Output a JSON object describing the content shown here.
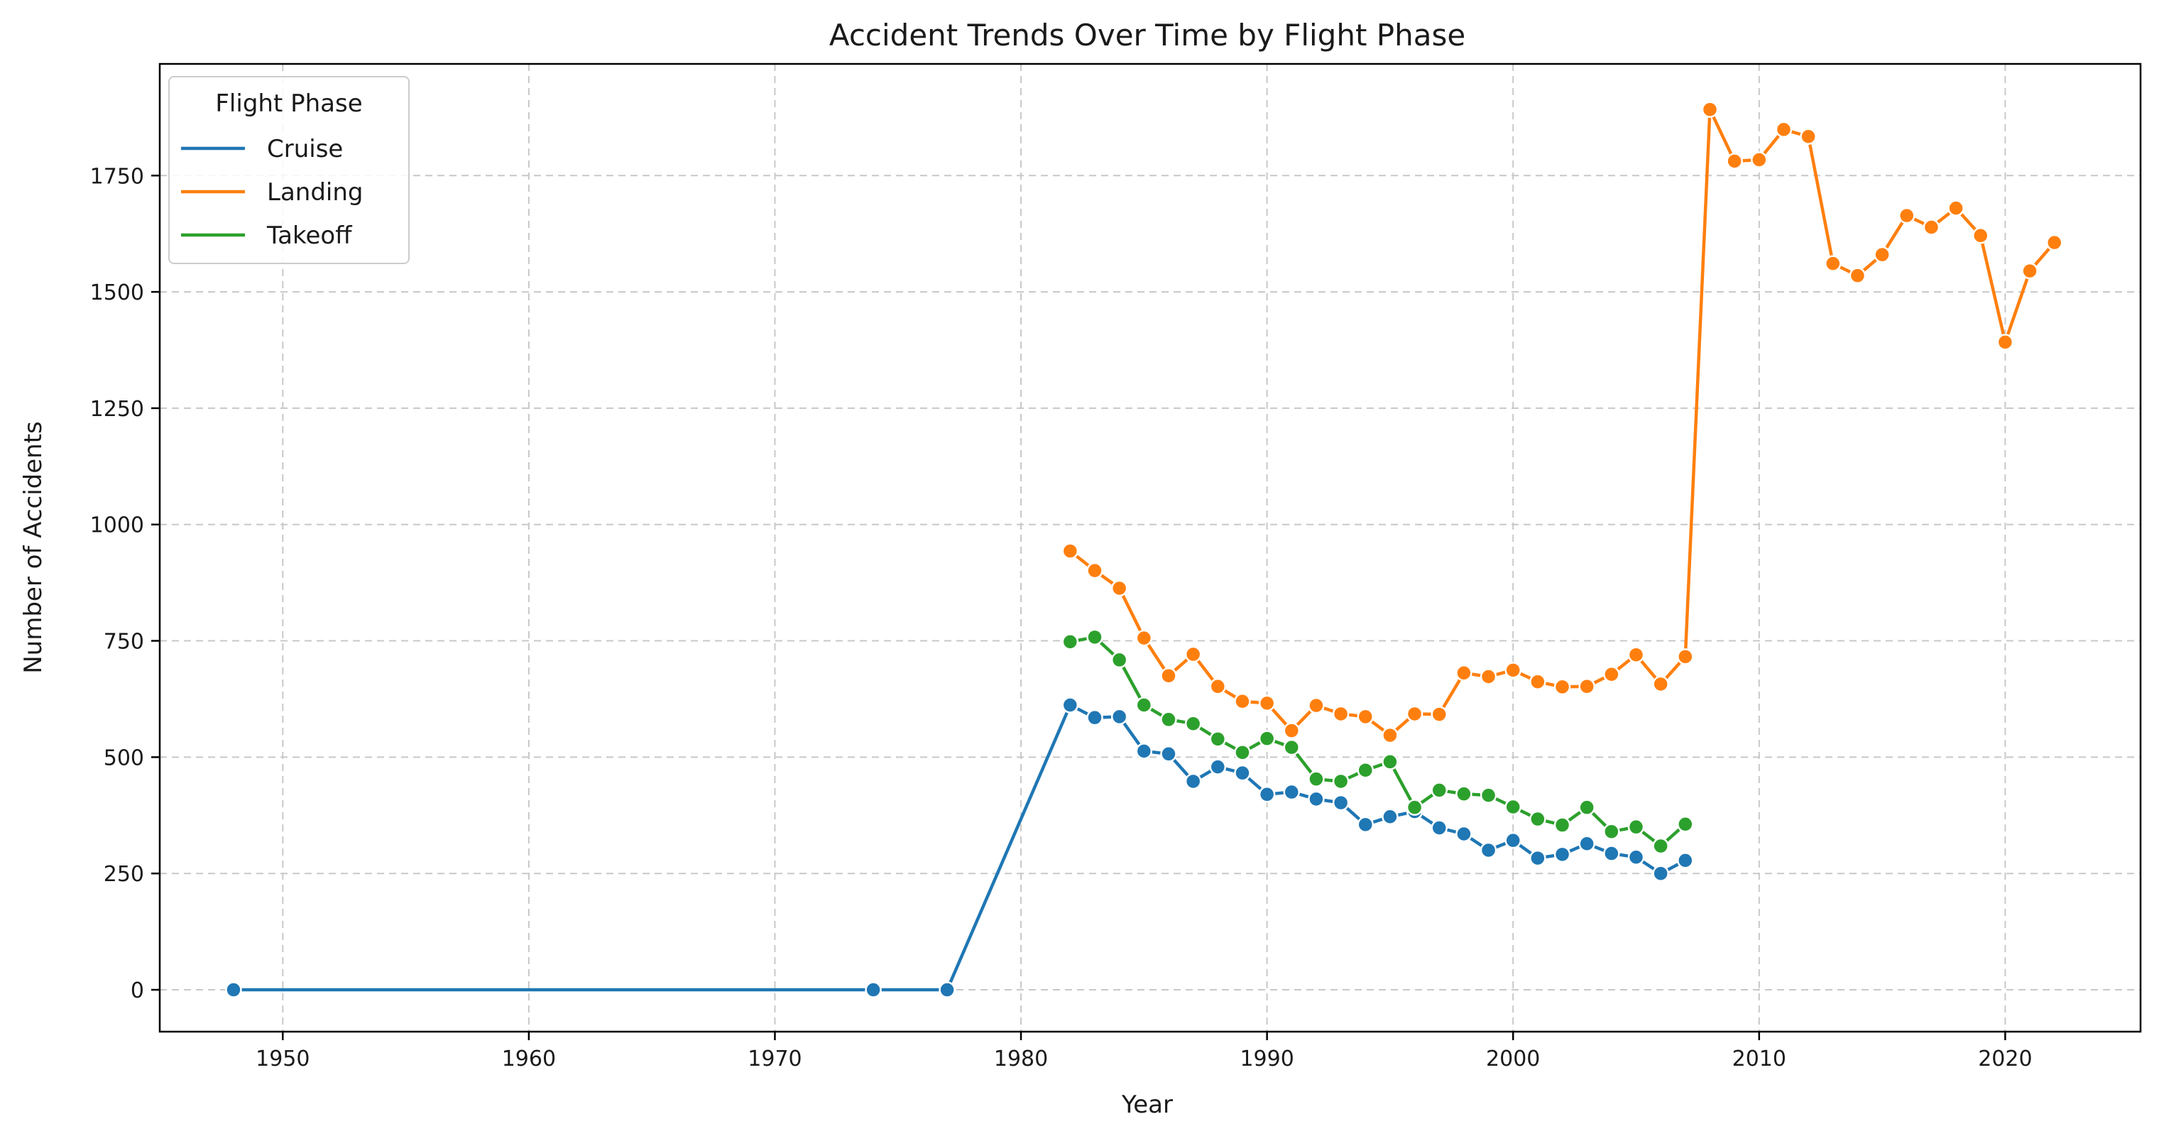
{
  "chart_data": {
    "type": "line",
    "title": "Accident Trends Over Time by Flight Phase",
    "xlabel": "Year",
    "ylabel": "Number of Accidents",
    "xlim": [
      1945,
      2025.5
    ],
    "ylim": [
      -90,
      1990
    ],
    "x_ticks": [
      1950,
      1960,
      1970,
      1980,
      1990,
      2000,
      2010,
      2020
    ],
    "y_ticks": [
      0,
      250,
      500,
      750,
      1000,
      1250,
      1500,
      1750
    ],
    "grid": true,
    "legend": {
      "title": "Flight Phase",
      "position": "top-left"
    },
    "series": [
      {
        "name": "Cruise",
        "color": "#1f77b4",
        "points": [
          [
            1948,
            0
          ],
          [
            1974,
            0
          ],
          [
            1977,
            0
          ],
          [
            1982,
            612
          ],
          [
            1983,
            585
          ],
          [
            1984,
            587
          ],
          [
            1985,
            513
          ],
          [
            1986,
            507
          ],
          [
            1987,
            448
          ],
          [
            1988,
            479
          ],
          [
            1989,
            466
          ],
          [
            1990,
            420
          ],
          [
            1991,
            425
          ],
          [
            1992,
            410
          ],
          [
            1993,
            402
          ],
          [
            1994,
            355
          ],
          [
            1995,
            372
          ],
          [
            1996,
            383
          ],
          [
            1997,
            348
          ],
          [
            1998,
            335
          ],
          [
            1999,
            300
          ],
          [
            2000,
            321
          ],
          [
            2001,
            283
          ],
          [
            2002,
            291
          ],
          [
            2003,
            314
          ],
          [
            2004,
            293
          ],
          [
            2005,
            285
          ],
          [
            2006,
            250
          ],
          [
            2007,
            278
          ]
        ]
      },
      {
        "name": "Landing",
        "color": "#ff7f0e",
        "points": [
          [
            1982,
            943
          ],
          [
            1983,
            901
          ],
          [
            1984,
            863
          ],
          [
            1985,
            756
          ],
          [
            1986,
            675
          ],
          [
            1987,
            721
          ],
          [
            1988,
            652
          ],
          [
            1989,
            620
          ],
          [
            1990,
            616
          ],
          [
            1991,
            557
          ],
          [
            1992,
            611
          ],
          [
            1993,
            593
          ],
          [
            1994,
            587
          ],
          [
            1995,
            547
          ],
          [
            1996,
            593
          ],
          [
            1997,
            592
          ],
          [
            1998,
            681
          ],
          [
            1999,
            673
          ],
          [
            2000,
            687
          ],
          [
            2001,
            662
          ],
          [
            2002,
            651
          ],
          [
            2003,
            652
          ],
          [
            2004,
            678
          ],
          [
            2005,
            720
          ],
          [
            2006,
            657
          ],
          [
            2007,
            716
          ],
          [
            2008,
            1892
          ],
          [
            2009,
            1781
          ],
          [
            2010,
            1784
          ],
          [
            2011,
            1849
          ],
          [
            2012,
            1834
          ],
          [
            2013,
            1561
          ],
          [
            2014,
            1535
          ],
          [
            2015,
            1580
          ],
          [
            2016,
            1664
          ],
          [
            2017,
            1639
          ],
          [
            2018,
            1680
          ],
          [
            2019,
            1621
          ],
          [
            2020,
            1392
          ],
          [
            2021,
            1545
          ],
          [
            2022,
            1606
          ]
        ]
      },
      {
        "name": "Takeoff",
        "color": "#2ca02c",
        "points": [
          [
            1982,
            748
          ],
          [
            1983,
            758
          ],
          [
            1984,
            709
          ],
          [
            1985,
            612
          ],
          [
            1986,
            581
          ],
          [
            1987,
            572
          ],
          [
            1988,
            539
          ],
          [
            1989,
            510
          ],
          [
            1990,
            540
          ],
          [
            1991,
            521
          ],
          [
            1992,
            453
          ],
          [
            1993,
            448
          ],
          [
            1994,
            472
          ],
          [
            1995,
            490
          ],
          [
            1996,
            392
          ],
          [
            1997,
            429
          ],
          [
            1998,
            421
          ],
          [
            1999,
            418
          ],
          [
            2000,
            393
          ],
          [
            2001,
            367
          ],
          [
            2002,
            354
          ],
          [
            2003,
            392
          ],
          [
            2004,
            340
          ],
          [
            2005,
            350
          ],
          [
            2006,
            309
          ],
          [
            2007,
            356
          ]
        ]
      }
    ]
  }
}
